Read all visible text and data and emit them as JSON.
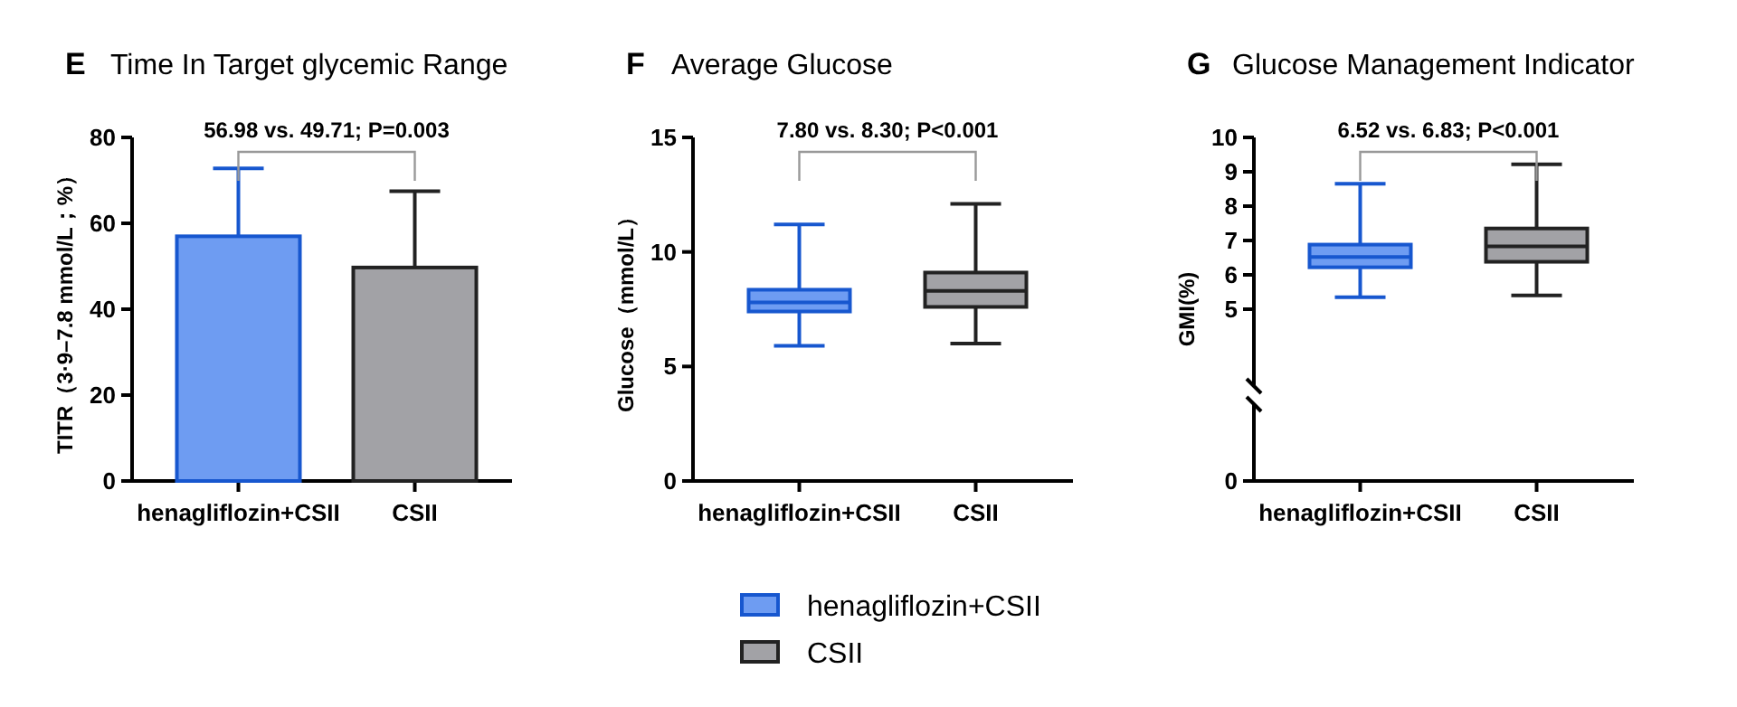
{
  "chart_data": [
    {
      "type": "bar",
      "title": "Time In Target glycemic Range",
      "ylabel": "TITR（3·9–7.8 mmol/L；%）",
      "categories": [
        "henagliflozin+CSII",
        "CSII"
      ],
      "series": [
        {
          "color": "#6e9cf2",
          "values": [
            56.98,
            null
          ],
          "errors": [
            [
              56.98,
              72.8
            ],
            null
          ]
        },
        {
          "color": "#a2a2a6",
          "values": [
            null,
            49.71
          ],
          "errors": [
            null,
            [
              49.71,
              67.5
            ]
          ]
        }
      ],
      "ylim": [
        0,
        80
      ],
      "yticks": [
        0,
        20,
        40,
        60,
        80
      ],
      "annotations": [
        "E",
        "56.98 vs. 49.71; P=0.003"
      ]
    },
    {
      "type": "box",
      "title": "Average Glucose",
      "ylabel": "Glucose（mmol/L）",
      "categories": [
        "henagliflozin+CSII",
        "CSII"
      ],
      "series": [
        {
          "name": "henagliflozin+CSII",
          "color": "#6e9cf2",
          "boxes": [
            {
              "low": 5.9,
              "q1": 7.4,
              "median": 7.8,
              "q3": 8.35,
              "high": 11.2
            },
            null
          ]
        },
        {
          "name": "CSII",
          "color": "#a2a2a6",
          "boxes": [
            null,
            {
              "low": 6.0,
              "q1": 7.6,
              "median": 8.3,
              "q3": 9.1,
              "high": 12.1
            }
          ]
        }
      ],
      "ylim": [
        0,
        15
      ],
      "yticks": [
        0,
        5,
        10,
        15
      ],
      "legend": "bottom",
      "annotations": [
        "F",
        "7.80 vs. 8.30; P<0.001"
      ]
    },
    {
      "type": "box",
      "title": "Glucose Management Indicator",
      "ylabel": "GMI(%)",
      "categories": [
        "henagliflozin+CSII",
        "CSII"
      ],
      "series": [
        {
          "color": "#6e9cf2",
          "boxes": [
            {
              "low": 5.35,
              "q1": 6.22,
              "median": 6.52,
              "q3": 6.88,
              "high": 8.65
            },
            null
          ]
        },
        {
          "color": "#a2a2a6",
          "boxes": [
            null,
            {
              "low": 5.4,
              "q1": 6.38,
              "median": 6.83,
              "q3": 7.35,
              "high": 9.22
            }
          ]
        }
      ],
      "ylim": [
        0,
        10
      ],
      "yticks": [
        0,
        5,
        6,
        7,
        8,
        9,
        10
      ],
      "annotations": [
        "G",
        "6.52 vs. 6.83; P<0.001"
      ]
    }
  ]
}
